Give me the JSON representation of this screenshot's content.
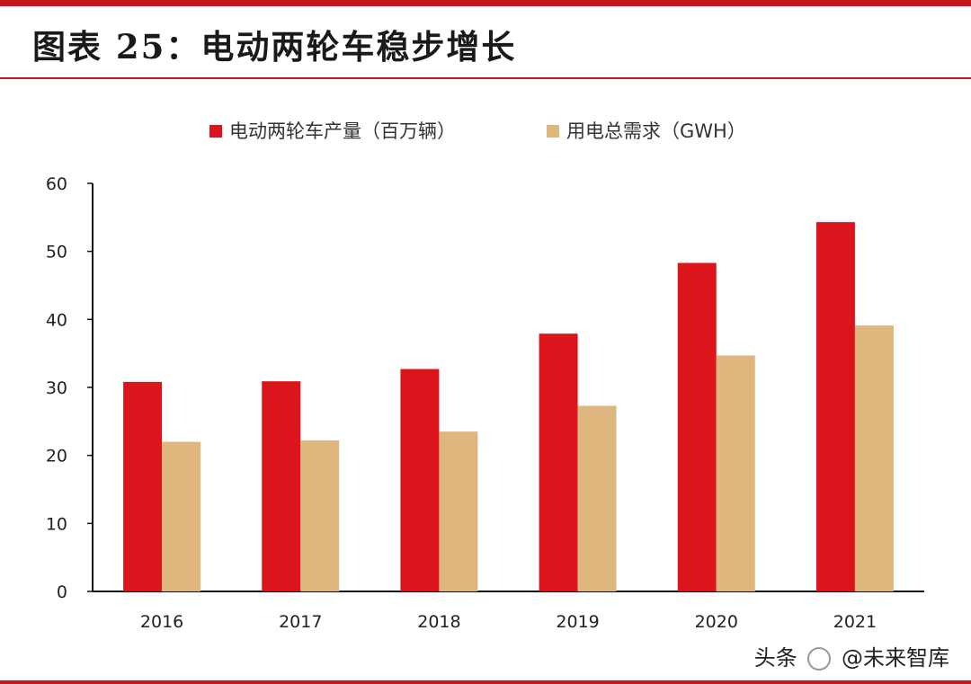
{
  "header": {
    "title": "图表 25：电动两轮车稳步增长"
  },
  "colors": {
    "accent": "#c8161d",
    "series1": "#dc141c",
    "series2": "#dfb67e"
  },
  "chart_data": {
    "type": "bar",
    "title": "图表 25：电动两轮车稳步增长",
    "xlabel": "",
    "ylabel": "",
    "ylim": [
      0,
      60
    ],
    "yticks": [
      0,
      10,
      20,
      30,
      40,
      50,
      60
    ],
    "grid": false,
    "legend_position": "top",
    "categories": [
      "2016",
      "2017",
      "2018",
      "2019",
      "2020",
      "2021"
    ],
    "series": [
      {
        "name": "电动两轮车产量（百万辆）",
        "color": "#dc141c",
        "values": [
          30.8,
          30.9,
          32.7,
          37.9,
          48.3,
          54.3
        ]
      },
      {
        "name": "用电总需求（GWH）",
        "color": "#dfb67e",
        "values": [
          22.0,
          22.2,
          23.5,
          27.3,
          34.7,
          39.1
        ]
      }
    ]
  },
  "watermark": {
    "platform": "头条",
    "account": "@未来智库"
  }
}
